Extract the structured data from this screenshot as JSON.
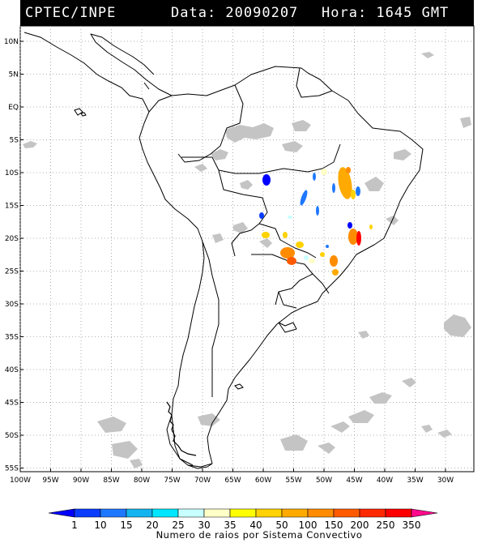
{
  "header": {
    "source": "CPTEC/INPE",
    "date_text": "Data: 20090207",
    "time_text": "Hora: 1645 GMT"
  },
  "map": {
    "lat_labels": [
      "10N",
      "5N",
      "EQ",
      "5S",
      "10S",
      "15S",
      "20S",
      "25S",
      "30S",
      "35S",
      "40S",
      "45S",
      "50S",
      "55S"
    ],
    "lat_values": [
      10,
      5,
      0,
      -5,
      -10,
      -15,
      -20,
      -25,
      -30,
      -35,
      -40,
      -45,
      -50,
      -55
    ],
    "lon_labels": [
      "100W",
      "95W",
      "90W",
      "85W",
      "80W",
      "75W",
      "70W",
      "65W",
      "60W",
      "55W",
      "50W",
      "45W",
      "40W",
      "35W",
      "30W"
    ],
    "lon_values": [
      -100,
      -95,
      -90,
      -85,
      -80,
      -75,
      -70,
      -65,
      -60,
      -55,
      -50,
      -45,
      -40,
      -35,
      -30
    ]
  },
  "legend": {
    "title": "Numero de raios por Sistema Convectivo",
    "ticks": [
      "1",
      "10",
      "15",
      "20",
      "25",
      "30",
      "35",
      "40",
      "50",
      "100",
      "150",
      "200",
      "250",
      "350"
    ],
    "colors": [
      "#0000ff",
      "#0a3cff",
      "#1e78ff",
      "#14b4f0",
      "#00e6ff",
      "#c8ffff",
      "#ffffc8",
      "#ffff00",
      "#ffd200",
      "#ffaa00",
      "#ff8c00",
      "#ff5a00",
      "#ff2800",
      "#ff0000",
      "#ff0a8c"
    ]
  },
  "colors": {
    "cloud": "#bebebe",
    "border": "#000000",
    "grid": "#999999"
  }
}
